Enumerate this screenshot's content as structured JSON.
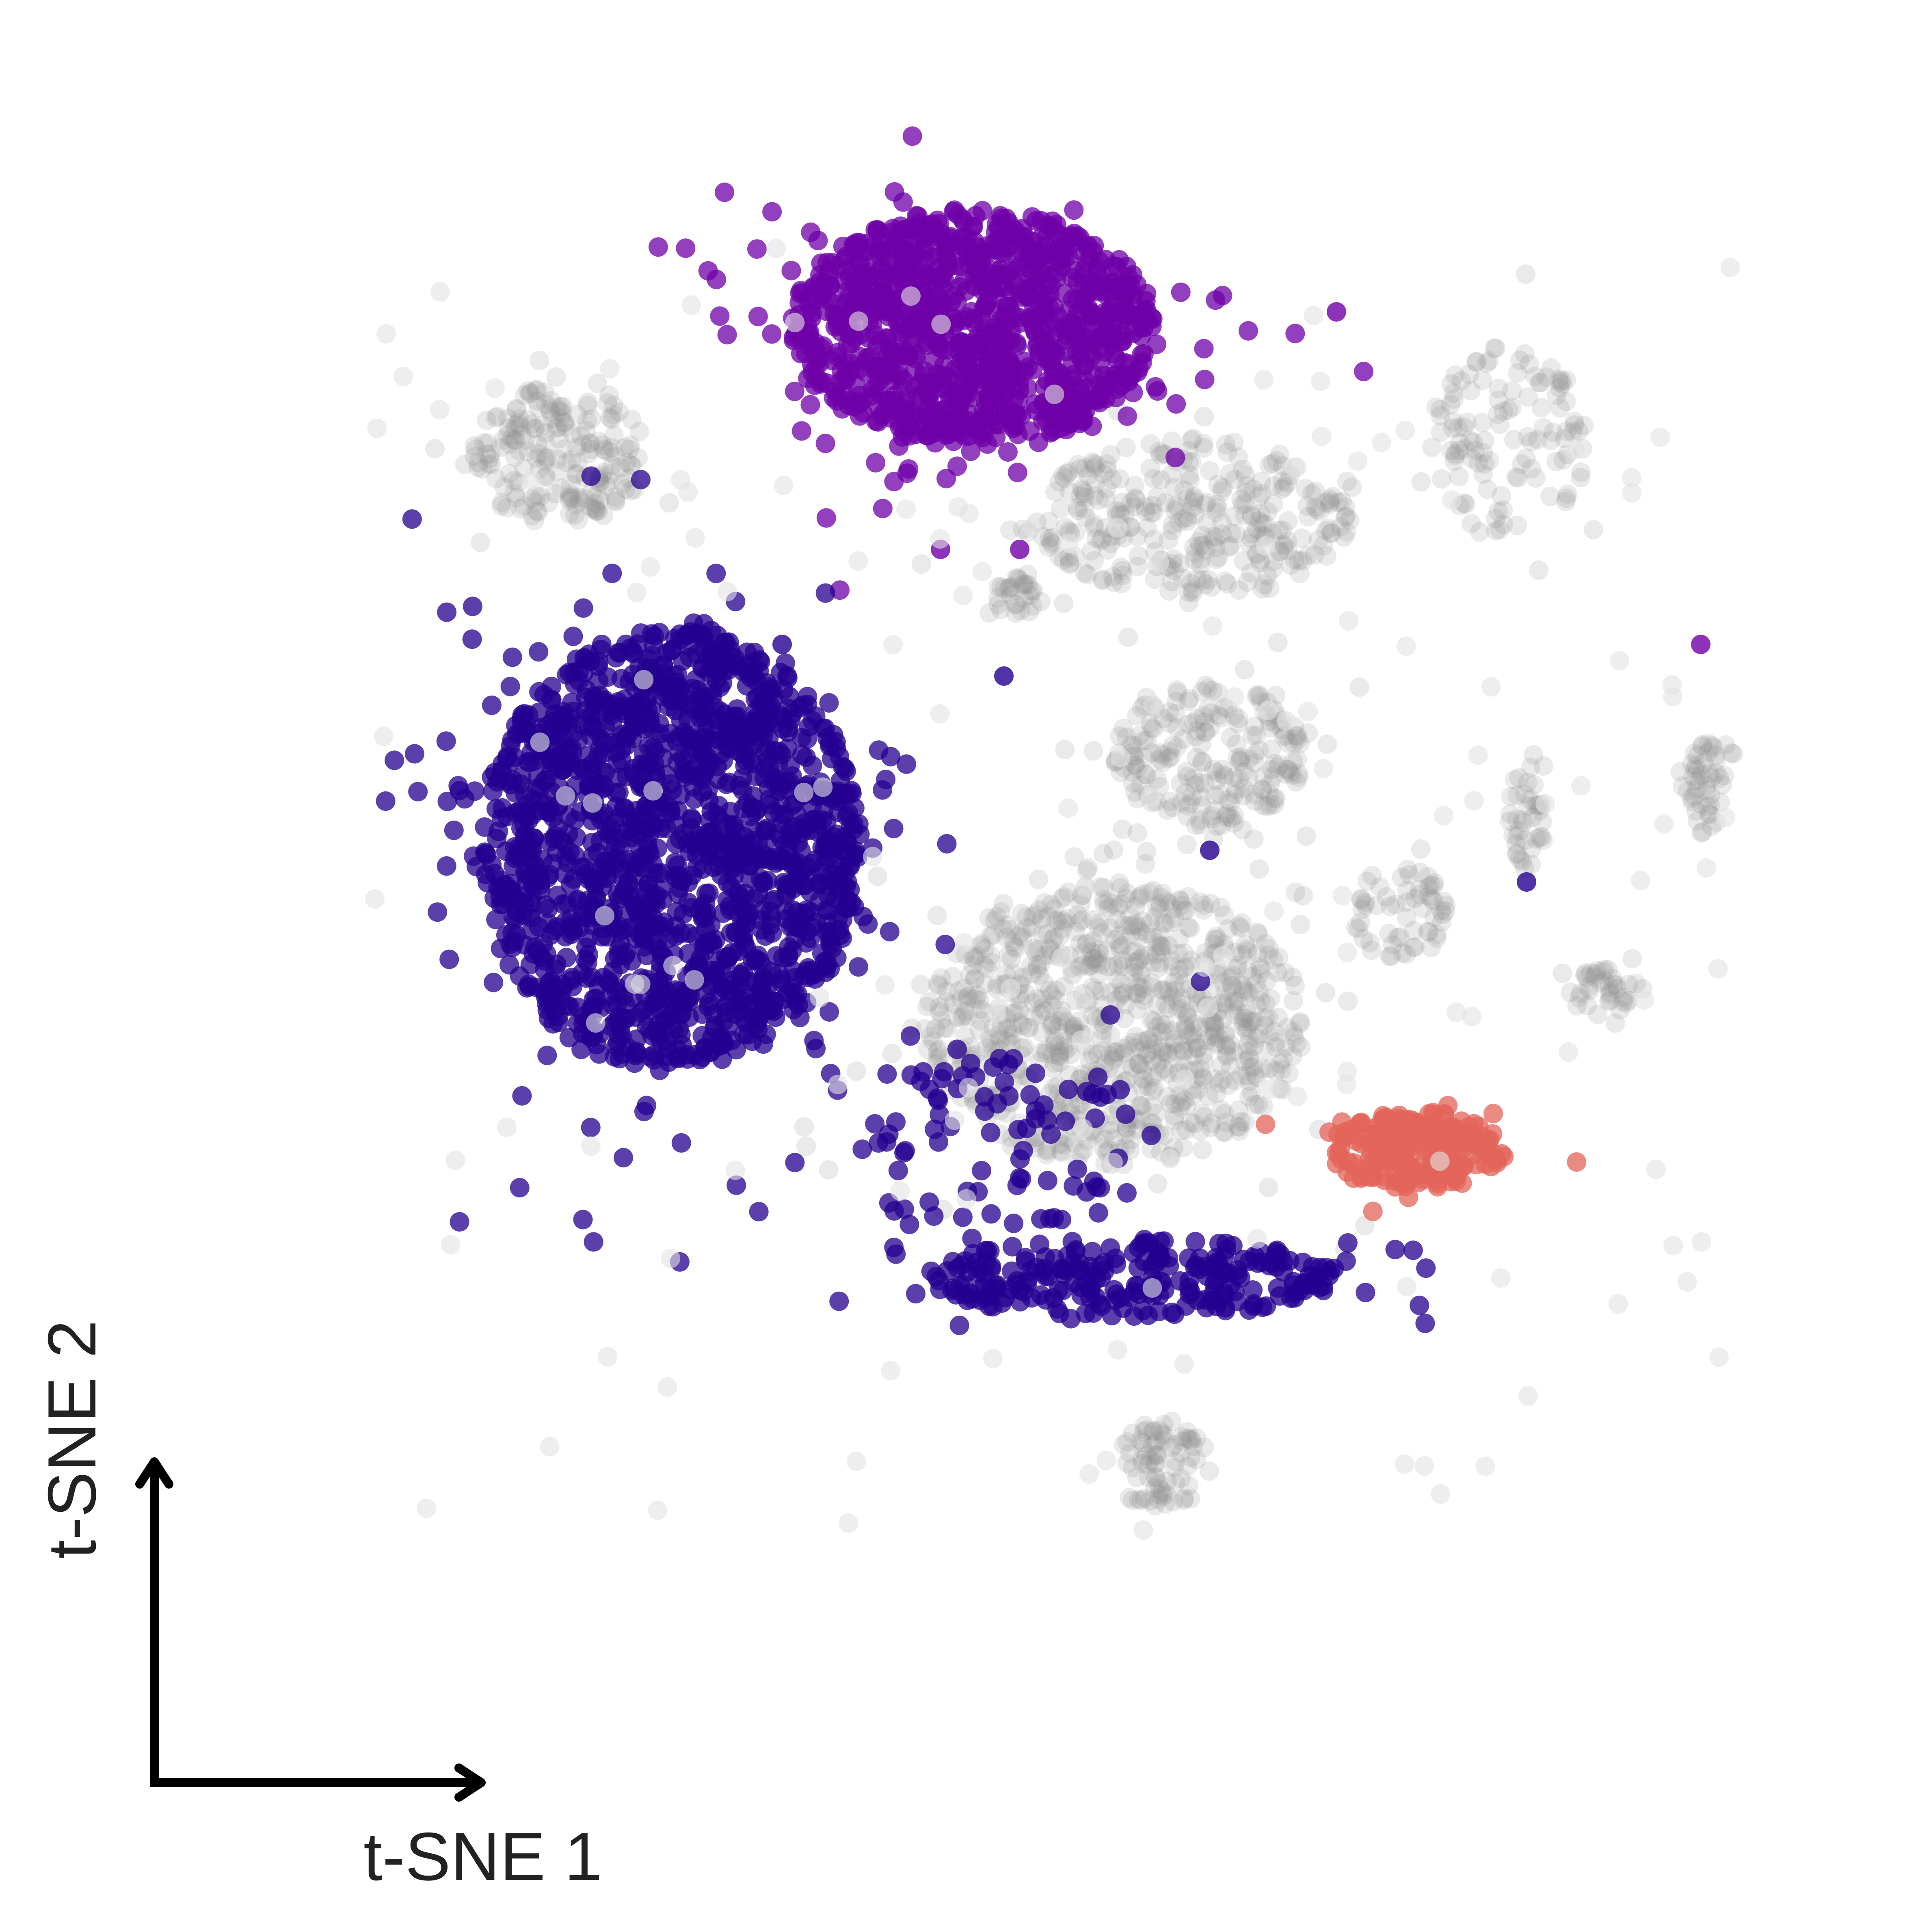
{
  "chart_data": {
    "type": "scatter",
    "title": "",
    "xlabel": "t-SNE 1",
    "ylabel": "t-SNE 2",
    "xlim": [
      0,
      100
    ],
    "ylim": [
      0,
      100
    ],
    "grid": false,
    "legend": "none",
    "colors": {
      "background_cells": "#888888",
      "outlier_cells": "#e2e2e2",
      "purple_cluster": "#6f00a8",
      "indigo_cluster": "#240090",
      "salmon_cluster": "#e36459"
    },
    "series": [
      {
        "color": "#888888",
        "regions": [
          {
            "shape": "ellipse",
            "cx": 20,
            "cy": 79,
            "rx": 5.5,
            "ry": 4.5,
            "n": 200
          },
          {
            "shape": "ellipse",
            "cx": 60,
            "cy": 75,
            "rx": 10,
            "ry": 5,
            "n": 320
          },
          {
            "shape": "ellipse",
            "cx": 80,
            "cy": 80,
            "rx": 5,
            "ry": 6,
            "n": 120
          },
          {
            "shape": "ellipse",
            "cx": 61,
            "cy": 60,
            "rx": 6,
            "ry": 4.5,
            "n": 220
          },
          {
            "shape": "ellipse",
            "cx": 55,
            "cy": 43,
            "rx": 12,
            "ry": 9,
            "n": 900
          },
          {
            "shape": "ellipse",
            "cx": 92,
            "cy": 58,
            "rx": 1.5,
            "ry": 3,
            "n": 50
          },
          {
            "shape": "ellipse",
            "cx": 73,
            "cy": 50,
            "rx": 3,
            "ry": 3,
            "n": 60
          },
          {
            "shape": "ellipse",
            "cx": 86,
            "cy": 45,
            "rx": 2.5,
            "ry": 1.5,
            "n": 40
          },
          {
            "shape": "ellipse",
            "cx": 58,
            "cy": 15,
            "rx": 3,
            "ry": 3,
            "n": 80
          },
          {
            "shape": "ellipse",
            "cx": 81,
            "cy": 56,
            "rx": 1.2,
            "ry": 3.5,
            "n": 40
          },
          {
            "shape": "ellipse",
            "cx": 49,
            "cy": 70,
            "rx": 1.5,
            "ry": 1.5,
            "n": 30
          }
        ]
      },
      {
        "color": "#6f00a8",
        "regions": [
          {
            "shape": "ellipse",
            "cx": 46,
            "cy": 87,
            "rx": 11.5,
            "ry": 7.5,
            "n": 1100
          }
        ],
        "points": [
          [
            69,
            88
          ],
          [
            92,
            67
          ],
          [
            44,
            73
          ],
          [
            49,
            73
          ]
        ]
      },
      {
        "color": "#240090",
        "regions": [
          {
            "shape": "ellipse",
            "cx": 27,
            "cy": 54,
            "rx": 12,
            "ry": 14,
            "n": 1600
          },
          {
            "shape": "ellipse",
            "cx": 56,
            "cy": 27,
            "rx": 13,
            "ry": 2.5,
            "n": 260
          },
          {
            "shape": "ellipse",
            "cx": 48,
            "cy": 35,
            "rx": 10,
            "ry": 6,
            "n": 90
          }
        ],
        "points": [
          [
            48,
            65
          ],
          [
            61,
            54
          ],
          [
            81,
            52
          ],
          [
            34,
            67
          ]
        ]
      },
      {
        "color": "#e36459",
        "regions": [
          {
            "shape": "ellipse",
            "cx": 74,
            "cy": 35,
            "rx": 5.5,
            "ry": 2.5,
            "n": 220
          }
        ]
      }
    ]
  }
}
